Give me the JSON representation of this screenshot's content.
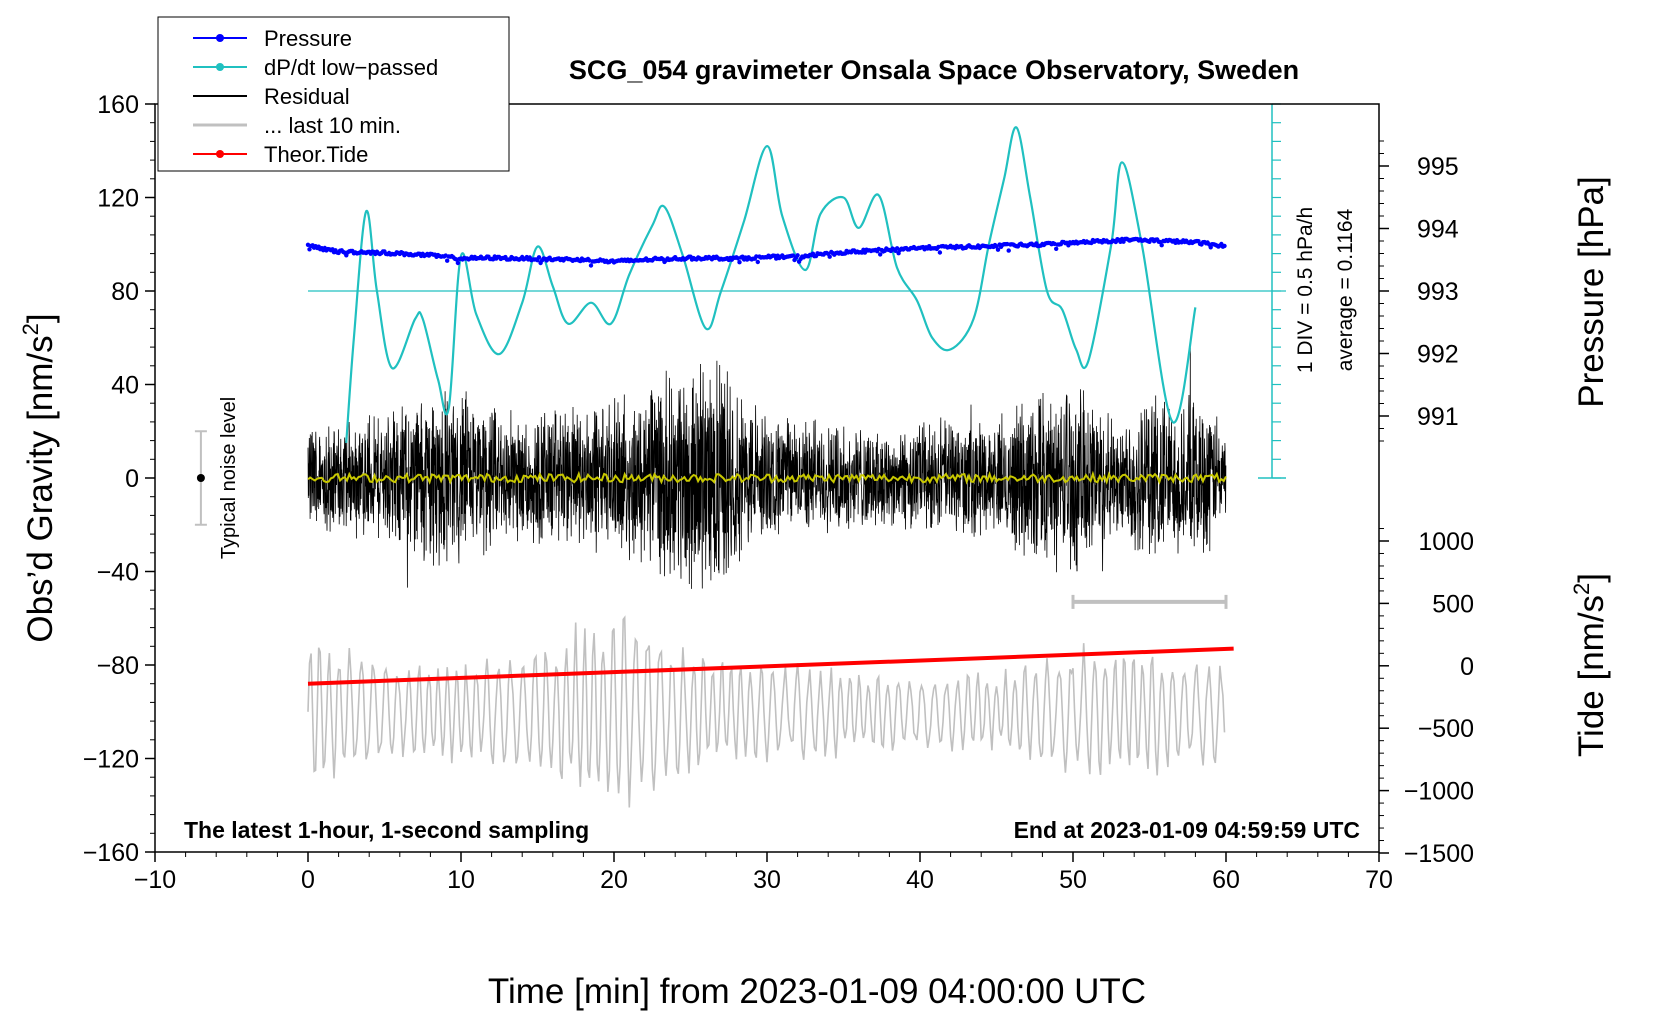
{
  "chart_data": {
    "type": "line",
    "title": "SCG_054 gravimeter Onsala Space Observatory, Sweden",
    "xlabel": "Time [min] from 2023-01-09 04:00:00 UTC",
    "ylabel": "Obs'd Gravity [nm/s2]",
    "ylabel_parts": {
      "main": "Obs’d Gravity [nm/s",
      "sup": "2",
      "end": "]"
    },
    "xlim": [
      -10,
      70
    ],
    "ylim": [
      -160,
      160
    ],
    "x_ticks": [
      -10,
      0,
      10,
      20,
      30,
      40,
      50,
      60,
      70
    ],
    "x_tick_labels": [
      "−10",
      "0",
      "10",
      "20",
      "30",
      "40",
      "50",
      "60",
      "70"
    ],
    "y_ticks": [
      -160,
      -120,
      -80,
      -40,
      0,
      40,
      80,
      120,
      160
    ],
    "y_tick_labels": [
      "−160",
      "−120",
      "−80",
      "−40",
      "0",
      "40",
      "80",
      "120",
      "160"
    ],
    "pressure_axis": {
      "label": "Pressure [hPa]",
      "ticks": [
        991,
        992,
        993,
        994,
        995
      ],
      "tick_labels": [
        "991",
        "992",
        "993",
        "994",
        "995"
      ]
    },
    "tide_axis": {
      "label": "Tide [nm/s2]",
      "label_parts": {
        "main": "Tide [nm/s",
        "sup": "2",
        "end": "]"
      },
      "ticks": [
        -1500,
        -1000,
        -500,
        0,
        500,
        1000
      ],
      "tick_labels": [
        "−1500",
        "−1000",
        "−500",
        "0",
        "500",
        "1000"
      ]
    },
    "dpdt_scale": {
      "div_label": "1 DIV = 0.5 hPa/h",
      "average_label": "average = 0.1164",
      "baseline_gravity": 80,
      "zero_gravity": 0,
      "top_gravity": 160
    },
    "noise_bar": {
      "label": "Typical noise level",
      "x": -7,
      "center": 0,
      "half_range": 20
    },
    "last10_bar": {
      "x_start": 50,
      "x_end": 60,
      "y": -53
    },
    "annotations": {
      "bottom_left": "The latest 1-hour, 1-second sampling",
      "bottom_right": "End at 2023-01-09 04:59:59 UTC"
    },
    "legend": {
      "placement": "top-left",
      "entries": [
        {
          "label": "Pressure",
          "color": "#0000ff",
          "marker": true
        },
        {
          "label": "dP/dt low−passed",
          "color": "#20c0c0",
          "marker": true
        },
        {
          "label": "Residual",
          "color": "#000000",
          "marker": false
        },
        {
          "label": "... last 10 min.",
          "color": "#c0c0c0",
          "marker": false
        },
        {
          "label": "Theor.Tide",
          "color": "#ff0000",
          "marker": true
        }
      ]
    },
    "series": [
      {
        "name": "Pressure",
        "unit": "hPa",
        "color": "#0000ff",
        "x": [
          0,
          2,
          4,
          6,
          8,
          10,
          12,
          14,
          16,
          18,
          20,
          22,
          24,
          26,
          28,
          30,
          32,
          34,
          36,
          38,
          40,
          42,
          44,
          46,
          48,
          50,
          52,
          54,
          56,
          58,
          60
        ],
        "values": [
          993.72,
          993.63,
          993.62,
          993.6,
          993.57,
          993.52,
          993.53,
          993.52,
          993.51,
          993.5,
          993.47,
          993.5,
          993.52,
          993.53,
          993.52,
          993.54,
          993.55,
          993.6,
          993.63,
          993.66,
          993.69,
          993.7,
          993.71,
          993.73,
          993.74,
          993.78,
          993.8,
          993.82,
          993.8,
          993.78,
          993.72
        ]
      },
      {
        "name": "dP/dt low-passed",
        "unit": "nm/s2 (plot scale)",
        "color": "#20c0c0",
        "x": [
          2.5,
          3,
          3.8,
          4.5,
          5.5,
          7,
          7.5,
          8.5,
          9.2,
          10,
          11,
          12.5,
          14,
          15,
          16,
          17,
          18.5,
          19.8,
          21,
          22.5,
          23.3,
          24.5,
          26,
          27,
          28.5,
          30,
          31,
          32.5,
          33.5,
          35,
          36,
          37.3,
          38.5,
          39.8,
          40.8,
          42,
          43.5,
          44.5,
          45.5,
          46.3,
          47.2,
          48.3,
          49.3,
          50.2,
          51,
          52.5,
          53.2,
          54.5,
          56.5,
          58
        ],
        "values": [
          15,
          60,
          114,
          80,
          47,
          68,
          68,
          42,
          30,
          95,
          70,
          53,
          75,
          99,
          82,
          66,
          75,
          66,
          87,
          108,
          116,
          95,
          64,
          80,
          110,
          142,
          112,
          89,
          113,
          120,
          107,
          121,
          90,
          76,
          60,
          55,
          68,
          100,
          128,
          150,
          120,
          80,
          72,
          55,
          50,
          100,
          135,
          100,
          24,
          73
        ]
      },
      {
        "name": "Residual",
        "unit": "nm/s2",
        "color": "#000000",
        "x_range": [
          0,
          60
        ],
        "envelope_x": [
          0,
          5,
          8,
          10,
          14,
          20,
          23,
          26.5,
          30,
          35,
          40,
          45,
          48,
          50,
          53,
          55,
          58,
          60
        ],
        "envelope_amp": [
          25,
          30,
          45,
          40,
          30,
          35,
          45,
          55,
          28,
          25,
          25,
          28,
          40,
          45,
          30,
          40,
          38,
          28
        ],
        "note": "high-frequency noise, 1-second samples"
      },
      {
        "name": "Residual low-passed",
        "unit": "nm/s2",
        "color": "#c8c800",
        "x_range": [
          0,
          60
        ],
        "values_approx": 0
      },
      {
        "name": "... last 10 min.",
        "unit": "nm/s2 (offset display)",
        "color": "#c0c0c0",
        "x_range": [
          0,
          60
        ],
        "center": -100,
        "envelope_x": [
          0,
          5,
          10,
          15,
          20,
          25,
          30,
          35,
          40,
          45,
          50,
          55,
          60
        ],
        "envelope_amp": [
          35,
          25,
          22,
          30,
          48,
          28,
          22,
          20,
          18,
          18,
          30,
          28,
          22
        ]
      },
      {
        "name": "Theor.Tide",
        "unit": "nm/s2",
        "color": "#ff0000",
        "x": [
          0,
          60.5
        ],
        "values": [
          148,
          140
        ]
      }
    ]
  }
}
